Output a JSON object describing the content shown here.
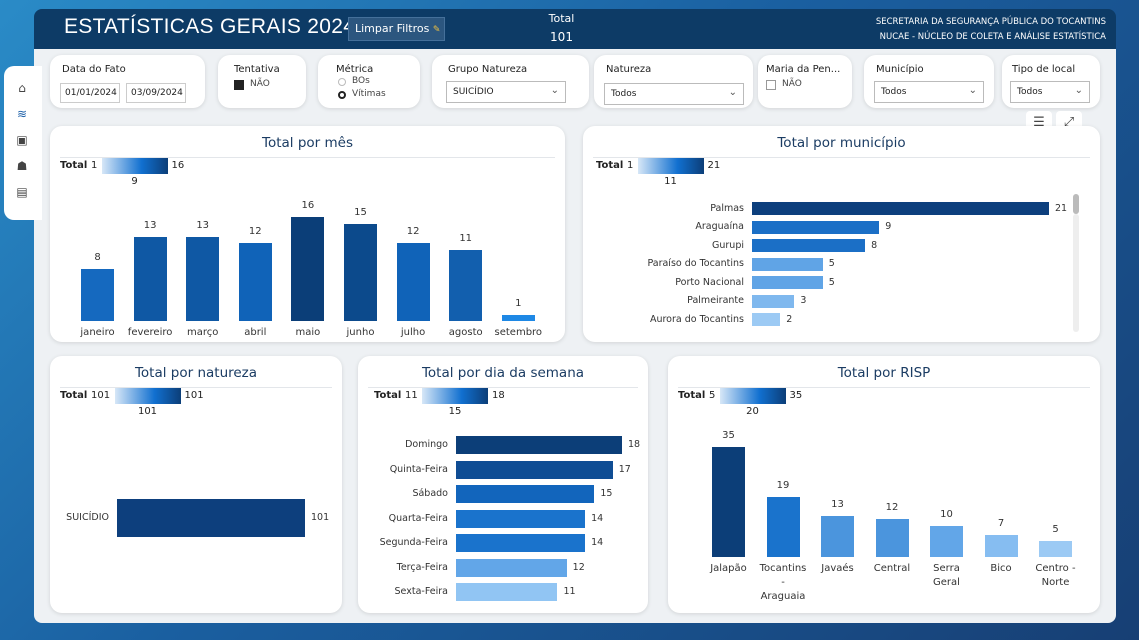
{
  "header": {
    "title": "ESTATÍSTICAS GERAIS 2024",
    "clear_filters": "Limpar Filtros",
    "total_label": "Total",
    "total_value": "101",
    "org_line1": "SECRETARIA DA SEGURANÇA PÚBLICA DO TOCANTINS",
    "org_line2": "NUCAE - NÚCLEO DE COLETA E ANÁLISE ESTATÍSTICA"
  },
  "nav": {
    "icons": [
      "home-icon",
      "chart-icon",
      "id-card-icon",
      "people-icon",
      "clipboard-icon"
    ]
  },
  "filters": {
    "date": {
      "title": "Data do Fato",
      "start": "01/01/2024",
      "end": "03/09/2024"
    },
    "tentativa": {
      "title": "Tentativa",
      "option": "NÃO"
    },
    "metrica": {
      "title": "Métrica",
      "opt1": "BOs",
      "opt2": "Vítimas"
    },
    "grupo": {
      "title": "Grupo Natureza",
      "value": "SUICÍDIO"
    },
    "natureza": {
      "title": "Natureza",
      "value": "Todos"
    },
    "maria": {
      "title": "Maria da Pen...",
      "option": "NÃO"
    },
    "municipio": {
      "title": "Município",
      "value": "Todos"
    },
    "tipo_local": {
      "title": "Tipo de local",
      "value": "Todos"
    }
  },
  "legend_total": "Total",
  "chart_data": [
    {
      "type": "bar",
      "title": "Total por mês",
      "legend": {
        "min": "1",
        "mid": "9",
        "max": "16"
      },
      "categories": [
        "janeiro",
        "fevereiro",
        "março",
        "abril",
        "maio",
        "junho",
        "julho",
        "agosto",
        "setembro"
      ],
      "values": [
        8,
        13,
        13,
        12,
        16,
        15,
        12,
        11,
        1
      ]
    },
    {
      "type": "bar",
      "orientation": "horizontal",
      "title": "Total por município",
      "legend": {
        "min": "1",
        "mid": "11",
        "max": "21"
      },
      "categories": [
        "Palmas",
        "Araguaína",
        "Gurupi",
        "Paraíso do Tocantins",
        "Porto Nacional",
        "Palmeirante",
        "Aurora do Tocantins"
      ],
      "values": [
        21,
        9,
        8,
        5,
        5,
        3,
        2
      ]
    },
    {
      "type": "bar",
      "orientation": "horizontal",
      "title": "Total por natureza",
      "legend": {
        "min": "101",
        "mid": "101",
        "max": "101"
      },
      "categories": [
        "SUICÍDIO"
      ],
      "values": [
        101
      ]
    },
    {
      "type": "bar",
      "orientation": "horizontal",
      "title": "Total por dia da semana",
      "legend": {
        "min": "11",
        "mid": "15",
        "max": "18"
      },
      "categories": [
        "Domingo",
        "Quinta-Feira",
        "Sábado",
        "Quarta-Feira",
        "Segunda-Feira",
        "Terça-Feira",
        "Sexta-Feira"
      ],
      "values": [
        18,
        17,
        15,
        14,
        14,
        12,
        11
      ]
    },
    {
      "type": "bar",
      "title": "Total por RISP",
      "legend": {
        "min": "5",
        "mid": "20",
        "max": "35"
      },
      "categories": [
        "Jalapão",
        "Tocantins\n-\nAraguaia",
        "Javaés",
        "Central",
        "Serra\nGeral",
        "Bico",
        "Centro -\nNorte"
      ],
      "values": [
        35,
        19,
        13,
        12,
        10,
        7,
        5
      ]
    }
  ],
  "colors": {
    "dark": "#0d3b66",
    "accent": "#1170d0"
  }
}
